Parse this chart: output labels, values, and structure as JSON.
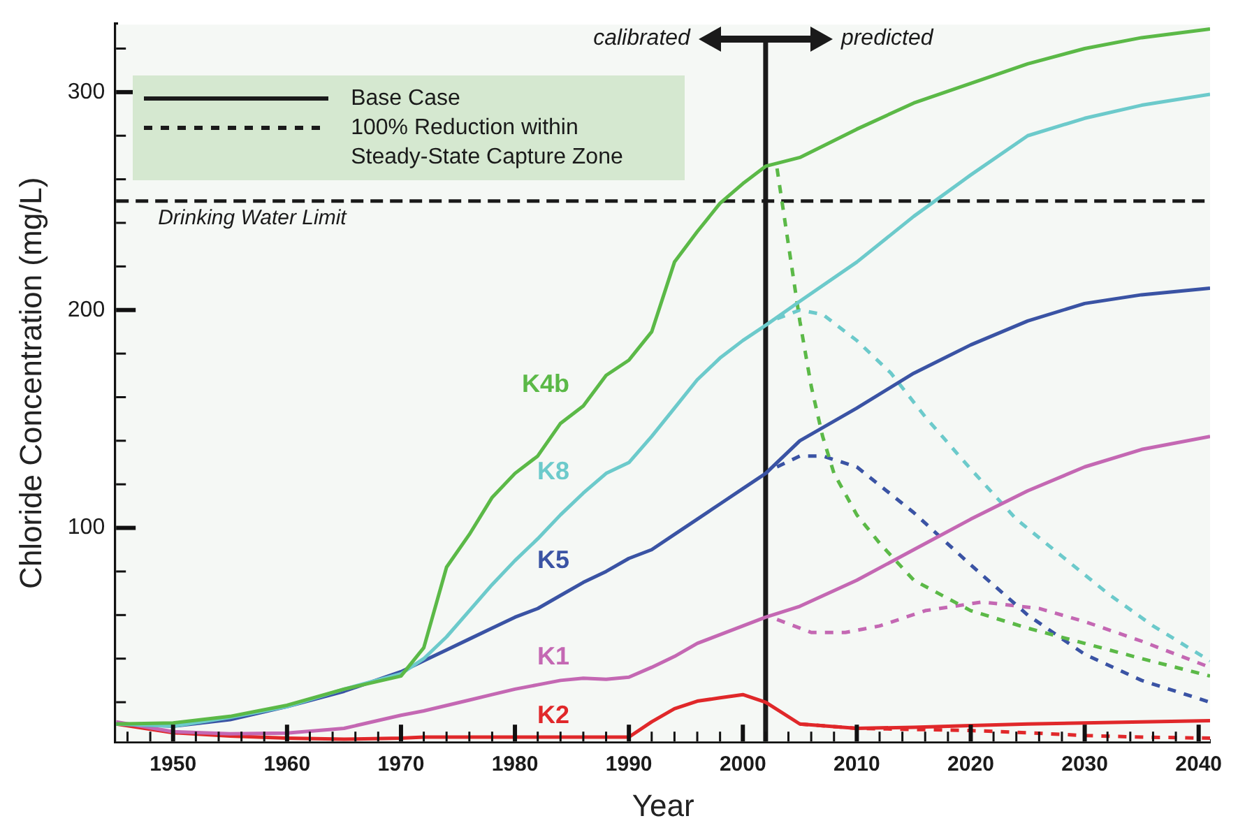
{
  "chart_data": {
    "type": "line",
    "xlabel": "Year",
    "ylabel": "Chloride Concentration (mg/L)",
    "x": [
      1945,
      1950,
      1955,
      1960,
      1965,
      1970,
      1972,
      1974,
      1976,
      1978,
      1980,
      1982,
      1984,
      1986,
      1988,
      1990,
      1992,
      1994,
      1996,
      1998,
      2000,
      2002,
      2005,
      2010,
      2015,
      2020,
      2025,
      2030,
      2035,
      2041
    ],
    "xlim": [
      1945,
      2041
    ],
    "ylim": [
      2,
      331
    ],
    "xticks": [
      {
        "value": 1946,
        "label": null
      },
      {
        "value": 1948,
        "label": null
      },
      1950,
      {
        "value": 1952,
        "label": null
      },
      {
        "value": 1954,
        "label": null
      },
      {
        "value": 1956,
        "label": null
      },
      {
        "value": 1958,
        "label": null
      },
      1960,
      {
        "value": 1962,
        "label": null
      },
      {
        "value": 1964,
        "label": null
      },
      {
        "value": 1966,
        "label": null
      },
      {
        "value": 1968,
        "label": null
      },
      1970,
      {
        "value": 1972,
        "label": null
      },
      {
        "value": 1974,
        "label": null
      },
      {
        "value": 1976,
        "label": null
      },
      {
        "value": 1978,
        "label": null
      },
      1980,
      {
        "value": 1982,
        "label": null
      },
      {
        "value": 1984,
        "label": null
      },
      {
        "value": 1986,
        "label": null
      },
      {
        "value": 1988,
        "label": null
      },
      1990,
      {
        "value": 1992,
        "label": null
      },
      {
        "value": 1994,
        "label": null
      },
      {
        "value": 1996,
        "label": null
      },
      {
        "value": 1998,
        "label": null
      },
      2000,
      {
        "value": 2002,
        "label": null
      },
      {
        "value": 2004,
        "label": null
      },
      {
        "value": 2006,
        "label": null
      },
      {
        "value": 2008,
        "label": null
      },
      2010,
      {
        "value": 2012,
        "label": null
      },
      {
        "value": 2014,
        "label": null
      },
      {
        "value": 2016,
        "label": null
      },
      {
        "value": 2018,
        "label": null
      },
      2020,
      {
        "value": 2022,
        "label": null
      },
      {
        "value": 2024,
        "label": null
      },
      {
        "value": 2026,
        "label": null
      },
      {
        "value": 2028,
        "label": null
      },
      2030,
      {
        "value": 2032,
        "label": null
      },
      {
        "value": 2034,
        "label": null
      },
      {
        "value": 2036,
        "label": null
      },
      {
        "value": 2038,
        "label": null
      },
      2040
    ],
    "yticks": [
      {
        "value": 20,
        "label": null
      },
      {
        "value": 40,
        "label": null
      },
      {
        "value": 60,
        "label": null
      },
      {
        "value": 80,
        "label": null
      },
      100,
      {
        "value": 120,
        "label": null
      },
      {
        "value": 140,
        "label": null
      },
      {
        "value": 160,
        "label": null
      },
      {
        "value": 180,
        "label": null
      },
      200,
      {
        "value": 220,
        "label": null
      },
      {
        "value": 240,
        "label": null
      },
      {
        "value": 260,
        "label": null
      },
      {
        "value": 280,
        "label": null
      },
      300,
      {
        "value": 320,
        "label": null
      }
    ],
    "series": [
      {
        "name": "K4b",
        "color": "#5bb947",
        "line_style": "solid",
        "values": [
          10,
          10.5,
          13.5,
          18.6,
          26,
          32,
          45,
          82,
          97,
          114,
          125,
          133,
          148,
          156,
          170,
          177,
          190,
          222,
          236,
          249,
          258,
          266,
          270,
          283,
          295,
          304,
          313,
          320,
          325,
          329
        ]
      },
      {
        "name": "K8",
        "color": "#6ccacb",
        "line_style": "solid",
        "values": [
          10,
          9,
          13,
          18,
          26,
          33,
          40,
          50,
          62,
          74,
          85,
          95,
          106,
          116,
          125,
          130,
          142,
          155,
          168,
          178,
          186,
          193,
          204,
          222,
          243,
          262,
          280,
          288,
          294,
          299
        ]
      },
      {
        "name": "K5",
        "color": "#3a53a4",
        "line_style": "solid",
        "values": [
          10,
          9,
          12,
          18,
          25,
          34,
          39,
          44,
          49,
          54,
          59,
          63,
          69,
          75,
          80,
          86,
          90,
          97,
          104,
          111,
          118,
          125,
          140,
          155,
          171,
          184,
          195,
          203,
          207,
          210
        ]
      },
      {
        "name": "K1",
        "color": "#c468b3",
        "line_style": "solid",
        "values": [
          11,
          6.5,
          5.5,
          5.8,
          8,
          14,
          16,
          18.5,
          21,
          23.5,
          26,
          28,
          30,
          31,
          30.5,
          31.5,
          36,
          41,
          47,
          51,
          55,
          59,
          64,
          76,
          90,
          104,
          117,
          128,
          136,
          142
        ]
      },
      {
        "name": "K2",
        "color": "#e0282a",
        "line_style": "solid",
        "values": [
          10,
          6,
          4.5,
          3.5,
          3,
          3.5,
          4,
          4,
          4,
          4,
          4,
          4,
          4,
          4,
          4,
          4,
          11,
          17,
          20.5,
          22,
          23.5,
          20,
          10,
          8,
          8.5,
          9.3,
          10,
          10.5,
          11,
          11.5
        ]
      },
      {
        "color": "#5bb947",
        "line_style": "dashed",
        "x": [
          2003,
          2004,
          2005,
          2006,
          2007,
          2008,
          2010,
          2012,
          2015,
          2020,
          2025,
          2030,
          2035,
          2041
        ],
        "values": [
          265,
          230,
          195,
          165,
          142,
          125,
          106,
          93,
          76,
          62,
          54,
          47,
          40,
          32
        ]
      },
      {
        "color": "#6ccacb",
        "line_style": "dashed",
        "x": [
          2003,
          2005,
          2007,
          2010,
          2013,
          2016,
          2020,
          2024,
          2028,
          2032,
          2036,
          2041
        ],
        "values": [
          196,
          200,
          198,
          186,
          171,
          151,
          127,
          104,
          87,
          70,
          55,
          39
        ]
      },
      {
        "color": "#3a53a4",
        "line_style": "dashed",
        "x": [
          2003,
          2005,
          2007,
          2010,
          2015,
          2020,
          2025,
          2030,
          2035,
          2041
        ],
        "values": [
          128,
          133,
          133,
          128,
          107,
          83,
          60,
          42,
          30,
          20
        ]
      },
      {
        "color": "#c468b3",
        "line_style": "dashed",
        "x": [
          2003,
          2006,
          2009,
          2012,
          2016,
          2021,
          2026,
          2030,
          2035,
          2041
        ],
        "values": [
          58,
          52,
          52,
          55,
          62,
          66,
          63,
          57,
          48,
          36
        ]
      },
      {
        "color": "#e0282a",
        "line_style": "dashed",
        "x": [
          2005,
          2010,
          2015,
          2020,
          2025,
          2030,
          2035,
          2041
        ],
        "values": [
          10,
          8,
          7.5,
          7,
          6,
          4.7,
          4,
          3.5
        ]
      }
    ],
    "ref_lines": [
      {
        "axis": "x",
        "value": 2002,
        "color": "#1a1a1a",
        "line_style": "solid"
      },
      {
        "axis": "y",
        "value": 250,
        "label": "Drinking Water Limit",
        "color": "#1a1a1a",
        "line_style": "dashed"
      }
    ],
    "annotations": [
      "calibrated",
      "predicted",
      "Base Case",
      "100% Reduction within Steady-State Capture Zone"
    ]
  }
}
